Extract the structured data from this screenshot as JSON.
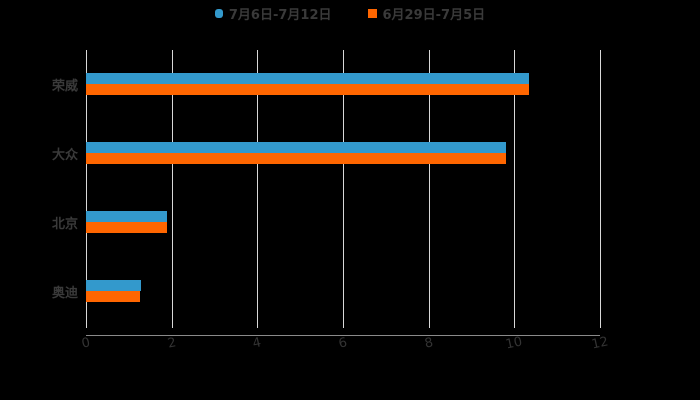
{
  "chart_data": {
    "type": "bar",
    "orientation": "horizontal",
    "title": "",
    "xlabel": "",
    "ylabel": "",
    "categories": [
      "荣威",
      "大众",
      "北京",
      "奥迪"
    ],
    "series": [
      {
        "name": "7月6日-7月12日",
        "color": "#3399cc",
        "values": [
          10.34,
          9.81,
          1.89,
          1.28
        ]
      },
      {
        "name": "6月29日-7月5日",
        "color": "#ff6600",
        "values": [
          10.34,
          9.81,
          1.89,
          1.26
        ]
      }
    ],
    "xlim": [
      0,
      12
    ],
    "x_ticks": [
      "0",
      "2",
      "4",
      "6",
      "8",
      "10",
      "12"
    ],
    "grid": true,
    "legend_position": "top"
  },
  "legend": {
    "items": [
      {
        "label": "7月6日-7月12日",
        "color": "#3399cc"
      },
      {
        "label": "6月29日-7月5日",
        "color": "#ff6600"
      }
    ]
  }
}
